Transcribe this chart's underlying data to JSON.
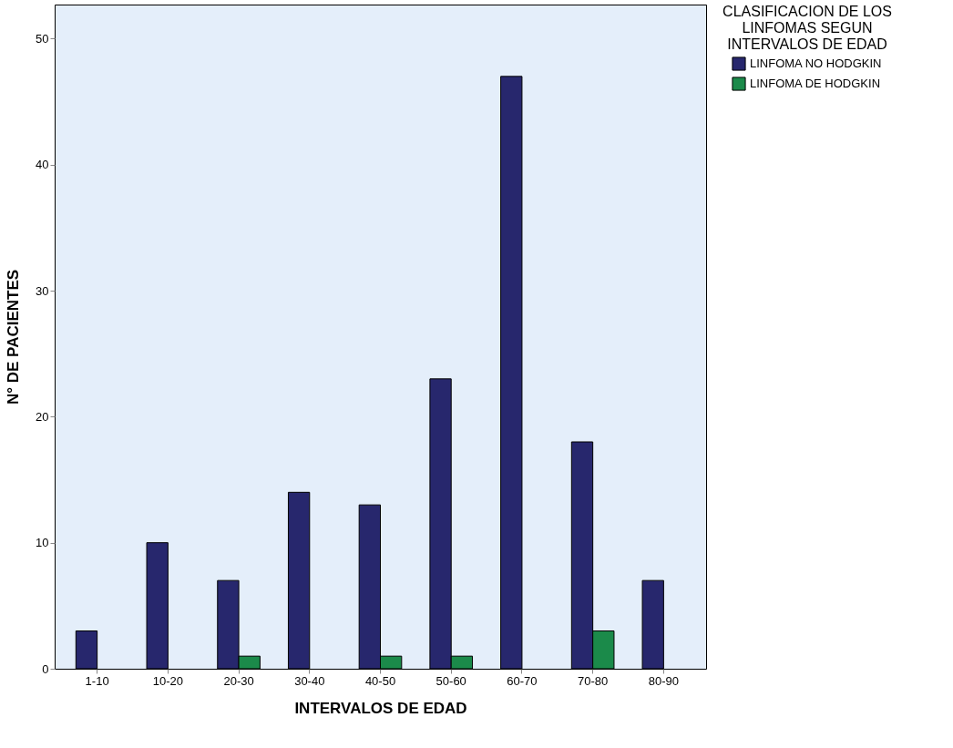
{
  "chart_data": {
    "type": "bar",
    "xlabel": "INTERVALOS DE EDAD",
    "ylabel": "N° DE PACIENTES",
    "legend_title": "CLASIFICACION DE LOS LINFOMAS SEGUN INTERVALOS DE EDAD",
    "categories": [
      "1-10",
      "10-20",
      "20-30",
      "30-40",
      "40-50",
      "50-60",
      "60-70",
      "70-80",
      "80-90"
    ],
    "series": [
      {
        "name": "LINFOMA NO HODGKIN",
        "color": "#27276d",
        "values": [
          3,
          10,
          7,
          14,
          13,
          23,
          47,
          18,
          7
        ]
      },
      {
        "name": "LINFOMA DE HODGKIN",
        "color": "#1b8a4a",
        "values": [
          null,
          null,
          1,
          null,
          1,
          1,
          null,
          3,
          null
        ]
      }
    ],
    "ylim": [
      0,
      52.7
    ],
    "yticks": [
      0,
      10,
      20,
      30,
      40,
      50
    ],
    "grid": false,
    "legend": "top right"
  }
}
